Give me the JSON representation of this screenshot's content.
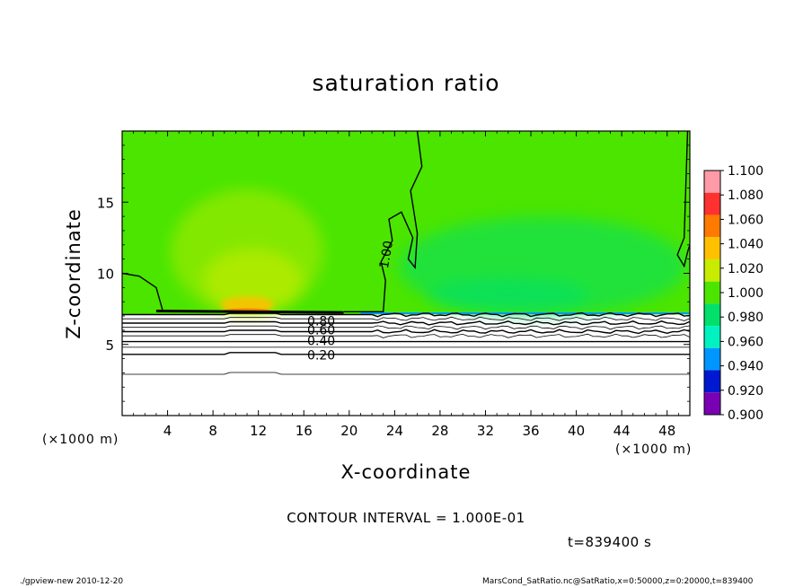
{
  "chart_data": {
    "type": "heatmap",
    "title": "saturation ratio",
    "xlabel": "X-coordinate",
    "ylabel": "Z-coordinate",
    "x_unit": "(×1000 m)",
    "xlim": [
      0,
      50
    ],
    "ylim": [
      0,
      20
    ],
    "x_ticks": [
      4,
      8,
      12,
      16,
      20,
      24,
      28,
      32,
      36,
      40,
      44,
      48
    ],
    "y_ticks": [
      5,
      10,
      15
    ],
    "colorbar": {
      "levels": [
        "1.100",
        "1.080",
        "1.060",
        "1.040",
        "1.020",
        "1.000",
        "0.980",
        "0.960",
        "0.940",
        "0.920",
        "0.900"
      ],
      "colors": [
        "#ff9aa8",
        "#ff3030",
        "#ff7a00",
        "#ffc000",
        "#c8ec00",
        "#4be500",
        "#00e06a",
        "#00f2c0",
        "#0096ff",
        "#0018d0",
        "#7a00b4"
      ]
    },
    "contour_interval": "CONTOUR INTERVAL = 1.000E-01",
    "contour_labels": [
      "1.00",
      "0.80",
      "0.60",
      "0.40",
      "0.20"
    ],
    "contour_lines": [
      {
        "level": 1.0,
        "z": 7.1
      },
      {
        "level": 0.9,
        "z": 6.8
      },
      {
        "level": 0.8,
        "z": 6.5
      },
      {
        "level": 0.7,
        "z": 6.2
      },
      {
        "level": 0.6,
        "z": 5.9
      },
      {
        "level": 0.5,
        "z": 5.6
      },
      {
        "level": 0.4,
        "z": 5.2
      },
      {
        "level": 0.3,
        "z": 4.8
      },
      {
        "level": 0.2,
        "z": 4.3
      },
      {
        "level": 0.1,
        "z": 2.9
      }
    ],
    "fields": [
      {
        "label": "background",
        "value": 1.0
      },
      {
        "label": "plume max near x=11, z=7.3",
        "value": 1.06
      },
      {
        "label": "plume body x=4-18, z=7-15",
        "value": 1.02
      },
      {
        "label": "subsaturated x=24-48, z=7-15",
        "value": 0.99
      },
      {
        "label": "below z=7",
        "value": "<1.0 (white)"
      }
    ]
  },
  "annotations": {
    "time": "t=839400 s",
    "footer_left": "./gpview-new  2010-12-20",
    "footer_right": "MarsCond_SatRatio.nc@SatRatio,x=0:50000,z=0:20000,t=839400"
  }
}
